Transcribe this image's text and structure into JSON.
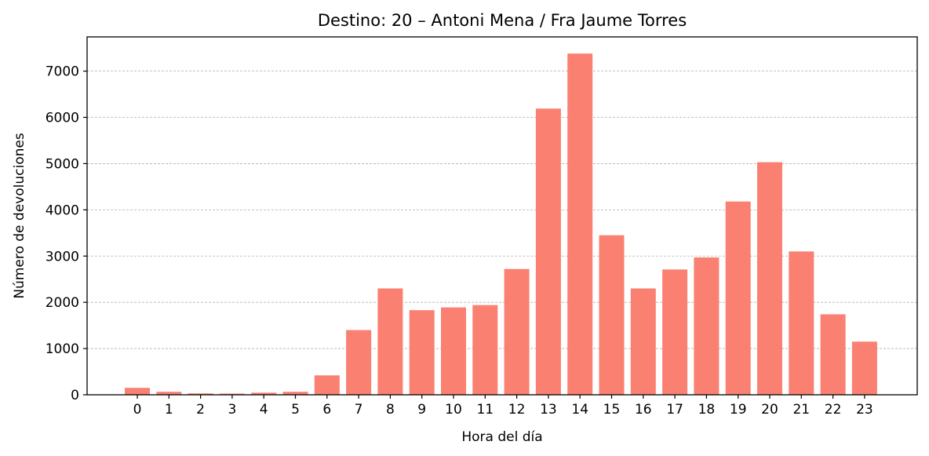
{
  "chart_data": {
    "type": "bar",
    "title": "Destino: 20 – Antoni Mena / Fra Jaume Torres",
    "xlabel": "Hora del día",
    "ylabel": "Número de devoluciones",
    "categories": [
      "0",
      "1",
      "2",
      "3",
      "4",
      "5",
      "6",
      "7",
      "8",
      "9",
      "10",
      "11",
      "12",
      "13",
      "14",
      "15",
      "16",
      "17",
      "18",
      "19",
      "20",
      "21",
      "22",
      "23"
    ],
    "values": [
      150,
      65,
      30,
      25,
      45,
      65,
      420,
      1400,
      2300,
      1830,
      1890,
      1940,
      2720,
      6190,
      7380,
      3450,
      2300,
      2710,
      2970,
      4180,
      5030,
      3100,
      1740,
      1150
    ],
    "yticks": [
      0,
      1000,
      2000,
      3000,
      4000,
      5000,
      6000,
      7000
    ],
    "ylim": [
      0,
      7740
    ],
    "grid": "y, dashed",
    "bar_color": "#fa8072"
  }
}
